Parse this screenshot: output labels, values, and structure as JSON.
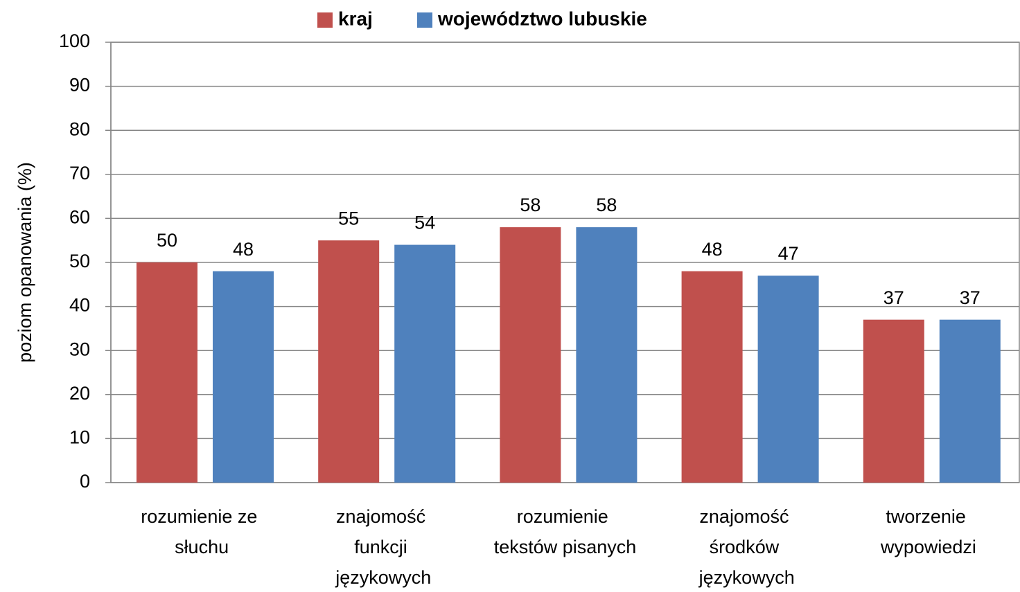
{
  "chart_data": {
    "type": "bar",
    "categories": [
      "rozumienie ze słuchu",
      "znajomość funkcji językowych",
      "rozumienie tekstów pisanych",
      "znajomość środków językowych",
      "tworzenie wypowiedzi"
    ],
    "series": [
      {
        "name": "kraj",
        "color": "#c0504d",
        "values": [
          50,
          55,
          58,
          48,
          37
        ]
      },
      {
        "name": "województwo lubuskie",
        "color": "#4f81bd",
        "values": [
          48,
          54,
          58,
          47,
          37
        ]
      }
    ],
    "ylabel": "poziom opanowania (%)",
    "ylim": [
      0,
      100
    ],
    "yticks": [
      0,
      10,
      20,
      30,
      40,
      50,
      60,
      70,
      80,
      90,
      100
    ],
    "grid": true,
    "legend": "top"
  }
}
